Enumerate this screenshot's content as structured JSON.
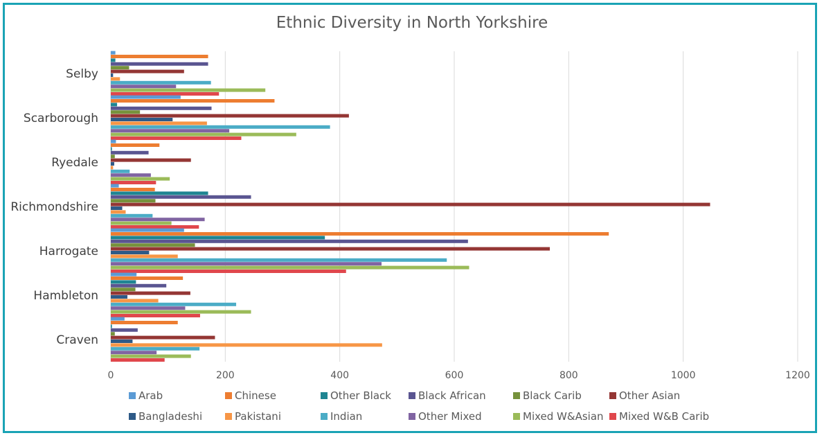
{
  "chart_data": {
    "type": "bar",
    "orientation": "horizontal",
    "title": "Ethnic Diversity in North Yorkshire",
    "xlabel": "",
    "ylabel": "",
    "xlim": [
      0,
      1200
    ],
    "xticks": [
      "0",
      "200",
      "400",
      "600",
      "800",
      "1000",
      "1200"
    ],
    "grid": true,
    "legend_position": "bottom",
    "categories": [
      "Selby",
      "Scarborough",
      "Ryedale",
      "Richmondshire",
      "Harrogate",
      "Hambleton",
      "Craven"
    ],
    "series": [
      {
        "name": "Arab",
        "color": "#5b9bd5",
        "values": [
          8,
          122,
          9,
          14,
          128,
          45,
          24
        ]
      },
      {
        "name": "Chinese",
        "color": "#ed7d31",
        "values": [
          170,
          286,
          85,
          77,
          870,
          126,
          117
        ]
      },
      {
        "name": "Other Black",
        "color": "#1f8592",
        "values": [
          8,
          11,
          2,
          170,
          374,
          44,
          2
        ]
      },
      {
        "name": "Black African",
        "color": "#5a5591",
        "values": [
          170,
          176,
          66,
          245,
          624,
          97,
          47
        ]
      },
      {
        "name": "Black Carib",
        "color": "#76923c",
        "values": [
          32,
          51,
          7,
          78,
          147,
          43,
          7
        ]
      },
      {
        "name": "Other Asian",
        "color": "#943634",
        "values": [
          128,
          416,
          140,
          1047,
          767,
          139,
          182
        ]
      },
      {
        "name": "Bangladeshi",
        "color": "#2e5a87",
        "values": [
          4,
          108,
          6,
          20,
          67,
          29,
          38
        ]
      },
      {
        "name": "Pakistani",
        "color": "#f79646",
        "values": [
          16,
          168,
          4,
          26,
          117,
          83,
          474
        ]
      },
      {
        "name": "Indian",
        "color": "#4bacc6",
        "values": [
          175,
          383,
          33,
          73,
          587,
          219,
          155
        ]
      },
      {
        "name": "Other Mixed",
        "color": "#8064a2",
        "values": [
          114,
          207,
          70,
          164,
          473,
          130,
          80
        ]
      },
      {
        "name": "Mixed W&Asian",
        "color": "#9bbb59",
        "values": [
          270,
          324,
          103,
          106,
          626,
          245,
          140
        ]
      },
      {
        "name": "Mixed W&B Carib",
        "color": "#e0474c",
        "values": [
          189,
          228,
          79,
          154,
          411,
          156,
          94
        ]
      }
    ]
  }
}
